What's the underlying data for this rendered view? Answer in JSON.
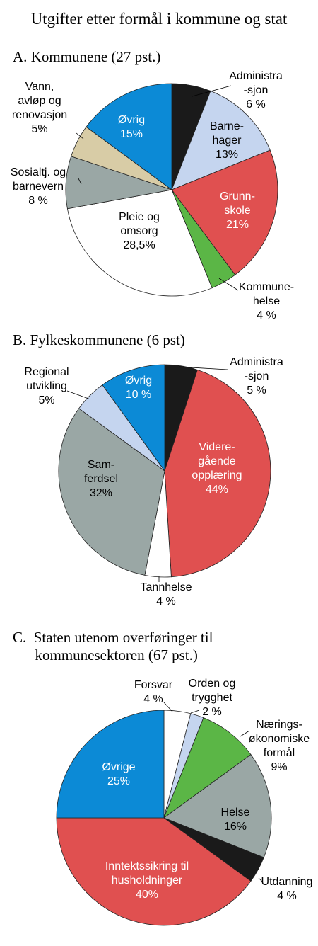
{
  "title": "Utgifter etter formål i kommune og stat",
  "colors": {
    "black": "#1a1a1a",
    "light_blue": "#c5d5ef",
    "red": "#e05050",
    "green": "#5bb646",
    "white": "#ffffff",
    "gray": "#9aa7a5",
    "tan": "#d8cca6",
    "blue": "#0c8ad6"
  },
  "chart_data": [
    {
      "type": "pie",
      "title": "A.  Kommunene (27 pst.)",
      "slices": [
        {
          "name": "Administra\n-sjon",
          "value": 6,
          "label": "6 %",
          "color": "#1a1a1a"
        },
        {
          "name": "Barne-\nhager",
          "value": 13,
          "label": "13%",
          "color": "#c5d5ef"
        },
        {
          "name": "Grunn-\nskole",
          "value": 21,
          "label": "21%",
          "color": "#e05050"
        },
        {
          "name": "Kommune-\nhelse",
          "value": 4,
          "label": "4 %",
          "color": "#5bb646"
        },
        {
          "name": "Pleie og\nomsorg",
          "value": 28.5,
          "label": "28,5%",
          "color": "#ffffff"
        },
        {
          "name": "Sosialtj. og\nbarnevern",
          "value": 8,
          "label": "8 %",
          "color": "#9aa7a5"
        },
        {
          "name": "Vann,\navløp og\nrenovasjon",
          "value": 5,
          "label": "5%",
          "color": "#d8cca6"
        },
        {
          "name": "Øvrig",
          "value": 15,
          "label": "15%",
          "color": "#0c8ad6"
        }
      ]
    },
    {
      "type": "pie",
      "title": "B.  Fylkeskommunene (6 pst)",
      "slices": [
        {
          "name": "Administra\n-sjon",
          "value": 5,
          "label": "5 %",
          "color": "#1a1a1a"
        },
        {
          "name": "Videre-\ngående\nopplæring",
          "value": 44,
          "label": "44%",
          "color": "#e05050"
        },
        {
          "name": "Tannhelse",
          "value": 4,
          "label": "4 %",
          "color": "#ffffff"
        },
        {
          "name": "Sam-\nferdsel",
          "value": 32,
          "label": "32%",
          "color": "#9aa7a5"
        },
        {
          "name": "Regional\nutvikling",
          "value": 5,
          "label": "5%",
          "color": "#c5d5ef"
        },
        {
          "name": "Øvrig",
          "value": 10,
          "label": "10 %",
          "color": "#0c8ad6"
        }
      ]
    },
    {
      "type": "pie",
      "title": "C.  Staten utenom overføringer til\n      kommunesektoren (67 pst.)",
      "slices": [
        {
          "name": "Forsvar",
          "value": 4,
          "label": "4 %",
          "color": "#ffffff"
        },
        {
          "name": "Orden og\ntrygghet",
          "value": 2,
          "label": "2 %",
          "color": "#c5d5ef"
        },
        {
          "name": "Nærings-\nøkonomiske\nformål",
          "value": 9,
          "label": "9%",
          "color": "#5bb646"
        },
        {
          "name": "Helse",
          "value": 16,
          "label": "16%",
          "color": "#9aa7a5"
        },
        {
          "name": "Utdanning",
          "value": 4,
          "label": "4 %",
          "color": "#1a1a1a"
        },
        {
          "name": "Inntektssikring til\nhusholdninger",
          "value": 40,
          "label": "40%",
          "color": "#e05050"
        },
        {
          "name": "Øvrige",
          "value": 25,
          "label": "25%",
          "color": "#0c8ad6"
        }
      ]
    }
  ]
}
